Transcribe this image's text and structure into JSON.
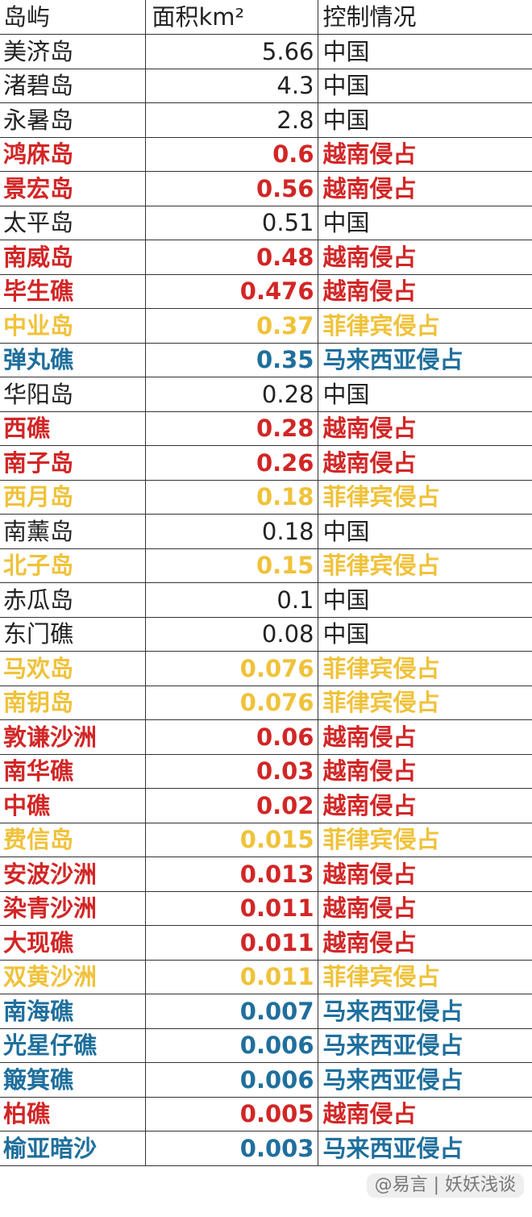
{
  "colors": {
    "china": "#222222",
    "vietnam": "#d22626",
    "philippines": "#f0c23a",
    "malaysia": "#1f6f9c"
  },
  "header": {
    "island": "岛屿",
    "area": "面积km²",
    "control": "控制情况"
  },
  "rows": [
    {
      "island": "美济岛",
      "area": "5.66",
      "control": "中国",
      "group": "china"
    },
    {
      "island": "渚碧岛",
      "area": "4.3",
      "control": "中国",
      "group": "china"
    },
    {
      "island": "永暑岛",
      "area": "2.8",
      "control": "中国",
      "group": "china"
    },
    {
      "island": "鸿庥岛",
      "area": "0.6",
      "control": "越南侵占",
      "group": "vietnam"
    },
    {
      "island": "景宏岛",
      "area": "0.56",
      "control": "越南侵占",
      "group": "vietnam"
    },
    {
      "island": "太平岛",
      "area": "0.51",
      "control": "中国",
      "group": "china"
    },
    {
      "island": "南威岛",
      "area": "0.48",
      "control": "越南侵占",
      "group": "vietnam"
    },
    {
      "island": "毕生礁",
      "area": "0.476",
      "control": "越南侵占",
      "group": "vietnam"
    },
    {
      "island": "中业岛",
      "area": "0.37",
      "control": "菲律宾侵占",
      "group": "philippines"
    },
    {
      "island": "弹丸礁",
      "area": "0.35",
      "control": "马来西亚侵占",
      "group": "malaysia"
    },
    {
      "island": "华阳岛",
      "area": "0.28",
      "control": "中国",
      "group": "china"
    },
    {
      "island": "西礁",
      "area": "0.28",
      "control": "越南侵占",
      "group": "vietnam"
    },
    {
      "island": "南子岛",
      "area": "0.26",
      "control": "越南侵占",
      "group": "vietnam"
    },
    {
      "island": "西月岛",
      "area": "0.18",
      "control": "菲律宾侵占",
      "group": "philippines"
    },
    {
      "island": "南薰岛",
      "area": "0.18",
      "control": "中国",
      "group": "china"
    },
    {
      "island": "北子岛",
      "area": "0.15",
      "control": "菲律宾侵占",
      "group": "philippines"
    },
    {
      "island": "赤瓜岛",
      "area": "0.1",
      "control": "中国",
      "group": "china"
    },
    {
      "island": "东门礁",
      "area": "0.08",
      "control": "中国",
      "group": "china"
    },
    {
      "island": "马欢岛",
      "area": "0.076",
      "control": "菲律宾侵占",
      "group": "philippines"
    },
    {
      "island": "南钥岛",
      "area": "0.076",
      "control": "菲律宾侵占",
      "group": "philippines"
    },
    {
      "island": "敦谦沙洲",
      "area": "0.06",
      "control": "越南侵占",
      "group": "vietnam"
    },
    {
      "island": "南华礁",
      "area": "0.03",
      "control": "越南侵占",
      "group": "vietnam"
    },
    {
      "island": "中礁",
      "area": "0.02",
      "control": "越南侵占",
      "group": "vietnam"
    },
    {
      "island": "费信岛",
      "area": "0.015",
      "control": "菲律宾侵占",
      "group": "philippines"
    },
    {
      "island": "安波沙洲",
      "area": "0.013",
      "control": "越南侵占",
      "group": "vietnam"
    },
    {
      "island": "染青沙洲",
      "area": "0.011",
      "control": "越南侵占",
      "group": "vietnam"
    },
    {
      "island": "大现礁",
      "area": "0.011",
      "control": "越南侵占",
      "group": "vietnam"
    },
    {
      "island": "双黄沙洲",
      "area": "0.011",
      "control": "菲律宾侵占",
      "group": "philippines"
    },
    {
      "island": "南海礁",
      "area": "0.007",
      "control": "马来西亚侵占",
      "group": "malaysia"
    },
    {
      "island": "光星仔礁",
      "area": "0.006",
      "control": "马来西亚侵占",
      "group": "malaysia"
    },
    {
      "island": "簸箕礁",
      "area": "0.006",
      "control": "马来西亚侵占",
      "group": "malaysia"
    },
    {
      "island": "柏礁",
      "area": "0.005",
      "control": "越南侵占",
      "group": "vietnam"
    },
    {
      "island": "榆亚暗沙",
      "area": "0.003",
      "control": "马来西亚侵占",
      "group": "malaysia"
    }
  ],
  "watermark": "@易言 | 妖妖浅谈"
}
